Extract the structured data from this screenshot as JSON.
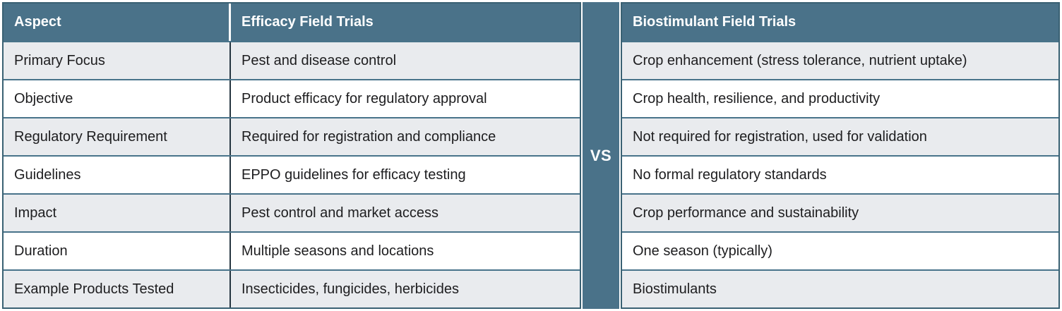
{
  "table": {
    "headers": {
      "aspect": "Aspect",
      "efficacy": "Efficacy Field Trials",
      "biostimulant": "Biostimulant Field Trials"
    },
    "vs_label": "VS",
    "rows": [
      {
        "aspect": "Primary Focus",
        "efficacy": "Pest and disease control",
        "biostimulant": "Crop enhancement (stress tolerance, nutrient uptake)"
      },
      {
        "aspect": "Objective",
        "efficacy": "Product efficacy for regulatory approval",
        "biostimulant": "Crop health, resilience, and productivity"
      },
      {
        "aspect": "Regulatory Requirement",
        "efficacy": "Required for registration and compliance",
        "biostimulant": "Not required for registration, used for validation"
      },
      {
        "aspect": "Guidelines",
        "efficacy": "EPPO guidelines for efficacy testing",
        "biostimulant": "No formal regulatory standards"
      },
      {
        "aspect": "Impact",
        "efficacy": "Pest control and market access",
        "biostimulant": "Crop performance and sustainability"
      },
      {
        "aspect": "Duration",
        "efficacy": "Multiple seasons and locations",
        "biostimulant": "One season (typically)"
      },
      {
        "aspect": "Example Products Tested",
        "efficacy": "Insecticides, fungicides, herbicides",
        "biostimulant": "Biostimulants"
      }
    ]
  },
  "colors": {
    "header_bg": "#4a7289",
    "vs_strip_bg": "#4a7289",
    "row_shaded": "#e9ebee",
    "row_plain": "#ffffff",
    "outer_border": "#3a6173",
    "row_separator": "#48738a",
    "column_separator": "#24343f",
    "header_text": "#ffffff",
    "body_text": "#1d1d1f"
  }
}
